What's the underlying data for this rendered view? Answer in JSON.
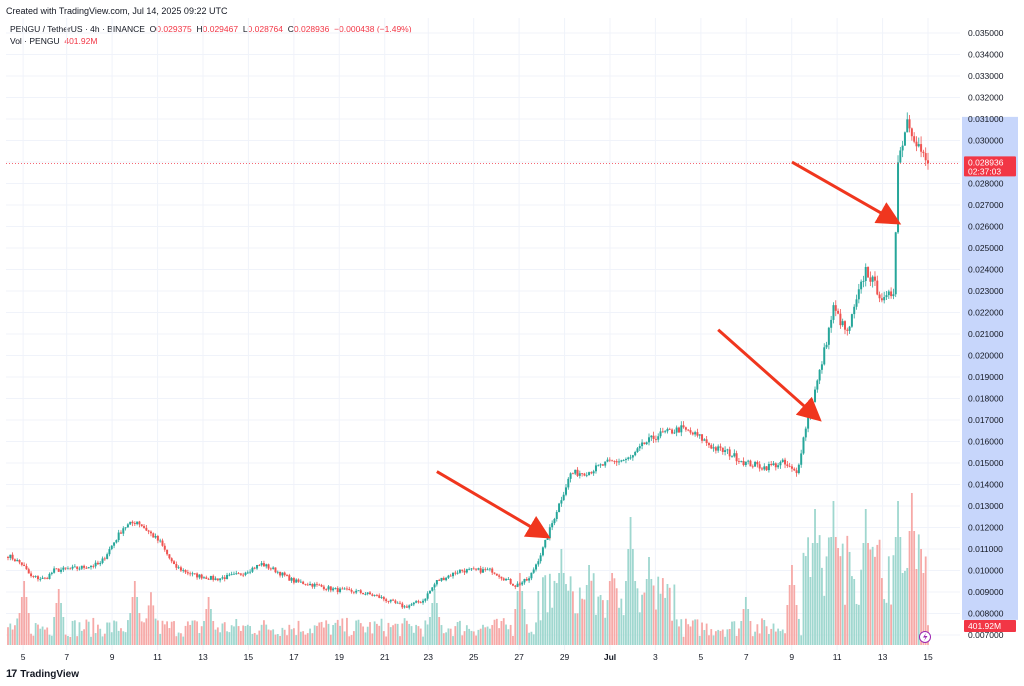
{
  "header": {
    "created": "Created with TradingView.com, Jul 14, 2025 09:22 UTC",
    "symbol": "PENGU / TetherUS · 4h · BINANCE",
    "o_label": "O",
    "o_value": "0.029375",
    "h_label": "H",
    "h_value": "0.029467",
    "l_label": "L",
    "l_value": "0.028764",
    "c_label": "C",
    "c_value": "0.028936",
    "change": "−0.000438 (−1.49%)",
    "vol_label": "Vol · PENGU",
    "vol_value": "401.92M"
  },
  "footer": {
    "logo_text": "TradingView",
    "logo_mark": "17"
  },
  "price_tag": {
    "value": "0.028936",
    "countdown": "02:37:03"
  },
  "vol_tag": {
    "value": "401.92M"
  },
  "colors": {
    "up": "#26a69a",
    "down": "#ef5350",
    "vol_up": "#9fd7cf",
    "vol_down": "#f6a9a7",
    "highlight": "#c7d6fb",
    "arrow": "#f0361e",
    "last": "#f23645"
  },
  "chart_data": {
    "type": "candlestick",
    "y_axis_ticks": [
      "0.007000",
      "0.008000",
      "0.009000",
      "0.010000",
      "0.011000",
      "0.012000",
      "0.013000",
      "0.014000",
      "0.015000",
      "0.016000",
      "0.017000",
      "0.018000",
      "0.019000",
      "0.020000",
      "0.021000",
      "0.022000",
      "0.023000",
      "0.024000",
      "0.025000",
      "0.026000",
      "0.027000",
      "0.028000",
      "0.029000",
      "0.030000",
      "0.031000",
      "0.032000",
      "0.033000",
      "0.034000",
      "0.035000"
    ],
    "x_axis_ticks": [
      "5",
      "7",
      "9",
      "11",
      "13",
      "15",
      "17",
      "19",
      "21",
      "23",
      "25",
      "27",
      "29",
      "Jul",
      "3",
      "5",
      "7",
      "9",
      "11",
      "13",
      "15"
    ],
    "ylim": [
      0.0063,
      0.0357
    ],
    "highlight_x": [
      "23",
      "13"
    ],
    "highlight_y": [
      0.0077,
      0.0311
    ],
    "last_price": 0.028936,
    "price_anchors": [
      [
        0,
        0.0107
      ],
      [
        6,
        0.0103
      ],
      [
        10,
        0.0097
      ],
      [
        16,
        0.0096
      ],
      [
        20,
        0.01
      ],
      [
        30,
        0.0101
      ],
      [
        40,
        0.0103
      ],
      [
        50,
        0.012
      ],
      [
        56,
        0.0123
      ],
      [
        66,
        0.0113
      ],
      [
        72,
        0.0102
      ],
      [
        80,
        0.0098
      ],
      [
        90,
        0.0096
      ],
      [
        100,
        0.0098
      ],
      [
        110,
        0.0103
      ],
      [
        116,
        0.01
      ],
      [
        124,
        0.0095
      ],
      [
        134,
        0.0093
      ],
      [
        142,
        0.0091
      ],
      [
        152,
        0.009
      ],
      [
        160,
        0.0088
      ],
      [
        172,
        0.0083
      ],
      [
        180,
        0.0086
      ],
      [
        186,
        0.0095
      ],
      [
        196,
        0.01
      ],
      [
        210,
        0.01
      ],
      [
        220,
        0.0093
      ],
      [
        226,
        0.0096
      ],
      [
        232,
        0.011
      ],
      [
        238,
        0.0128
      ],
      [
        244,
        0.0145
      ],
      [
        252,
        0.0146
      ],
      [
        260,
        0.015
      ],
      [
        270,
        0.0152
      ],
      [
        276,
        0.0159
      ],
      [
        282,
        0.0163
      ],
      [
        292,
        0.0166
      ],
      [
        300,
        0.0162
      ],
      [
        306,
        0.0157
      ],
      [
        312,
        0.0155
      ],
      [
        320,
        0.015
      ],
      [
        328,
        0.0148
      ],
      [
        336,
        0.015
      ],
      [
        342,
        0.0145
      ],
      [
        346,
        0.0167
      ],
      [
        352,
        0.0192
      ],
      [
        358,
        0.0222
      ],
      [
        364,
        0.021
      ],
      [
        372,
        0.024
      ],
      [
        380,
        0.0225
      ],
      [
        384,
        0.023
      ],
      [
        386,
        0.029
      ],
      [
        390,
        0.031
      ],
      [
        396,
        0.0295
      ],
      [
        398,
        0.028936
      ]
    ],
    "volume_spikes": [
      [
        7,
        0.4
      ],
      [
        22,
        0.35
      ],
      [
        55,
        0.4
      ],
      [
        62,
        0.33
      ],
      [
        87,
        0.3
      ],
      [
        185,
        0.35
      ],
      [
        222,
        0.45
      ],
      [
        240,
        0.6
      ],
      [
        252,
        0.5
      ],
      [
        262,
        0.45
      ],
      [
        270,
        0.8
      ],
      [
        278,
        0.55
      ],
      [
        320,
        0.3
      ],
      [
        340,
        0.5
      ],
      [
        350,
        0.85
      ],
      [
        358,
        0.9
      ],
      [
        372,
        0.85
      ],
      [
        386,
        0.9
      ],
      [
        392,
        0.95
      ],
      [
        396,
        0.6
      ]
    ]
  },
  "annotations": [
    {
      "name": "arrow-1",
      "from": [
        186,
        0.0146
      ],
      "to": [
        232,
        0.0117
      ]
    },
    {
      "name": "arrow-2",
      "from": [
        308,
        0.0212
      ],
      "to": [
        350,
        0.0172
      ]
    },
    {
      "name": "arrow-3",
      "from": [
        340,
        0.029
      ],
      "to": [
        384,
        0.0263
      ]
    }
  ]
}
